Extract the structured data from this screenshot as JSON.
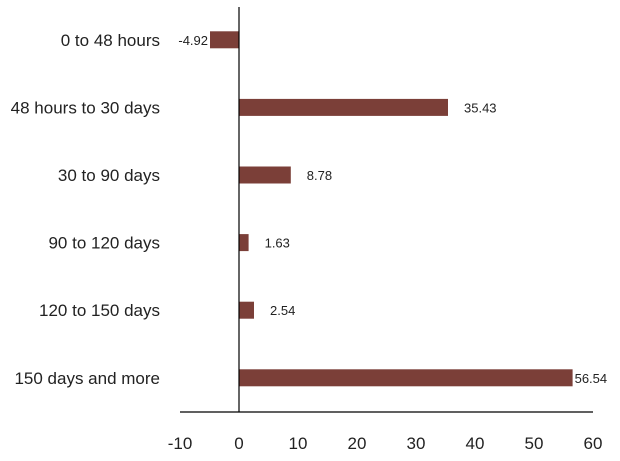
{
  "chart_data": {
    "type": "bar",
    "orientation": "horizontal",
    "title": "",
    "xlabel": "",
    "ylabel": "",
    "categories": [
      "0 to 48 hours",
      "48 hours to 30 days",
      "30 to 90 days",
      "90 to 120 days",
      "120 to 150 days",
      "150 days and more"
    ],
    "series": [
      {
        "values": [
          -4.92,
          35.43,
          8.78,
          1.63,
          2.54,
          56.54
        ],
        "color": "#7b3f38"
      }
    ],
    "value_labels": [
      "-4.92",
      "35.43",
      "8.78",
      "1.63",
      "2.54",
      "56.54"
    ],
    "xlim": [
      -10,
      60
    ],
    "x_ticks": [
      "-10",
      "0",
      "10",
      "20",
      "30",
      "40",
      "50",
      "60"
    ],
    "grid": false,
    "legend": "none"
  }
}
